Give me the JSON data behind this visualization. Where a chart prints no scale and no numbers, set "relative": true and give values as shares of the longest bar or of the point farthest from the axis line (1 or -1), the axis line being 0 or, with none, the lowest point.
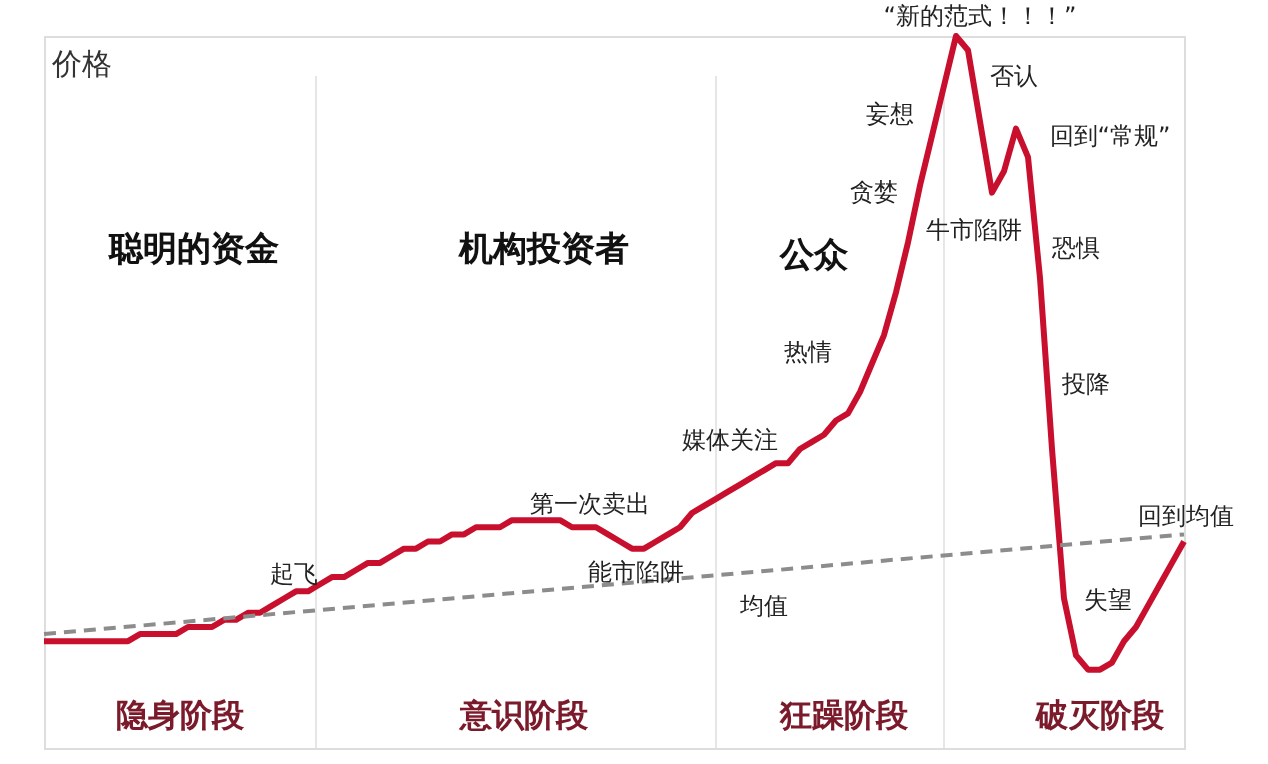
{
  "chart_data": {
    "type": "line",
    "relative": true,
    "ylabel": "价格",
    "marker": "none",
    "categories": [
      null,
      null,
      null,
      null,
      null,
      null,
      null,
      null,
      null,
      null,
      null,
      null,
      null,
      null,
      null,
      null,
      null,
      null,
      null,
      null,
      null,
      null,
      null,
      null,
      null,
      null,
      null,
      null,
      null,
      null,
      null,
      null,
      null,
      null,
      null,
      null,
      null,
      null,
      null,
      null,
      null,
      null,
      null,
      null,
      null,
      null,
      null,
      null,
      null,
      null,
      null,
      null,
      null,
      null,
      null,
      null,
      null,
      null,
      null,
      null,
      null,
      null,
      null,
      null,
      null,
      null,
      null,
      null,
      null,
      null,
      null,
      null,
      null,
      null,
      null,
      null,
      null,
      null,
      null,
      null,
      null,
      null,
      null,
      null,
      null,
      null,
      null,
      null,
      null,
      null,
      null,
      null,
      null,
      null,
      null,
      null
    ],
    "series": [
      {
        "color": "#c8102e",
        "line_style": "solid",
        "values": [
          0.15,
          0.15,
          0.15,
          0.15,
          0.15,
          0.15,
          0.15,
          0.15,
          0.16,
          0.16,
          0.16,
          0.16,
          0.17,
          0.17,
          0.17,
          0.18,
          0.18,
          0.19,
          0.19,
          0.2,
          0.21,
          0.22,
          0.22,
          0.23,
          0.24,
          0.24,
          0.25,
          0.26,
          0.26,
          0.27,
          0.28,
          0.28,
          0.29,
          0.29,
          0.3,
          0.3,
          0.31,
          0.31,
          0.31,
          0.32,
          0.32,
          0.32,
          0.32,
          0.32,
          0.31,
          0.31,
          0.31,
          0.3,
          0.29,
          0.28,
          0.28,
          0.29,
          0.3,
          0.31,
          0.33,
          0.34,
          0.35,
          0.36,
          0.37,
          0.38,
          0.39,
          0.4,
          0.4,
          0.42,
          0.43,
          0.44,
          0.46,
          0.47,
          0.5,
          0.54,
          0.58,
          0.64,
          0.71,
          0.79,
          0.86,
          0.93,
          1,
          0.98,
          0.88,
          0.78,
          0.81,
          0.87,
          0.83,
          0.66,
          0.42,
          0.21,
          0.13,
          0.11,
          0.11,
          0.12,
          0.15,
          0.17,
          0.2,
          0.23,
          0.26,
          0.29
        ]
      },
      {
        "color": "#8c8c8c",
        "line_style": "dashed",
        "values": [
          0.16,
          null,
          null,
          null,
          null,
          null,
          null,
          null,
          null,
          null,
          null,
          null,
          null,
          null,
          null,
          null,
          null,
          null,
          null,
          null,
          null,
          null,
          null,
          null,
          null,
          null,
          null,
          null,
          null,
          null,
          null,
          null,
          null,
          null,
          null,
          null,
          null,
          null,
          null,
          null,
          null,
          null,
          null,
          null,
          null,
          null,
          null,
          null,
          null,
          null,
          null,
          null,
          null,
          null,
          null,
          null,
          null,
          null,
          null,
          null,
          null,
          null,
          null,
          null,
          null,
          null,
          null,
          null,
          null,
          null,
          null,
          null,
          null,
          null,
          null,
          null,
          null,
          null,
          null,
          null,
          null,
          null,
          null,
          null,
          null,
          null,
          null,
          null,
          null,
          null,
          null,
          null,
          null,
          null,
          null,
          0.3
        ]
      }
    ],
    "annotations": [
      "隐身阶段",
      "意识阶段",
      "狂躁阶段",
      "破灭阶段",
      "聪明的资金",
      "机构投资者",
      "公众",
      "起飞",
      "第一次卖出",
      "能市陷阱",
      "均值",
      "媒体关注",
      "热情",
      "贪婪",
      "妄想",
      "“新的范式！！！”",
      "否认",
      "回到“常规”",
      "牛市陷阱",
      "恐惧",
      "投降",
      "失望",
      "回到均值"
    ]
  }
}
